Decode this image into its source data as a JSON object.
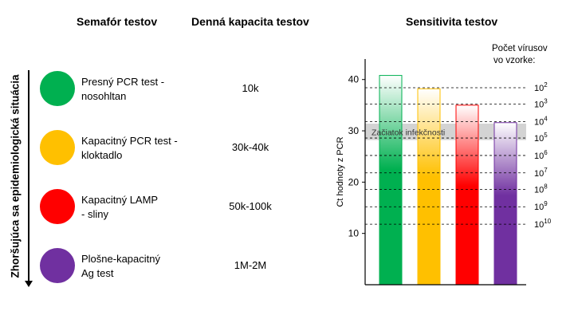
{
  "headers": {
    "semafor": "Semafór testov",
    "kapacita": "Denná kapacita testov",
    "sensitivita": "Sensitivita testov"
  },
  "side_label": "Zhoršujúca sa epidemiologická situácia",
  "tests": [
    {
      "name": "Presný PCR test -\nnosohltan",
      "capacity": "10k",
      "color": "#00B050"
    },
    {
      "name": "Kapacitný PCR test -\nkloktadlo",
      "capacity": "30k-40k",
      "color": "#FFC000"
    },
    {
      "name": "Kapacitný LAMP\n- sliny",
      "capacity": "50k-100k",
      "color": "#FF0000"
    },
    {
      "name": "Plošne-kapacitný\nAg test",
      "capacity": "1M-2M",
      "color": "#7030A0"
    }
  ],
  "chart_data": {
    "type": "bar",
    "title": "Sensitivita testov",
    "ylabel": "Ct hodnoty z PCR",
    "ylim": [
      0,
      44
    ],
    "yticks": [
      10,
      20,
      30,
      40
    ],
    "values": [
      40.8,
      38.2,
      35.0,
      31.6
    ],
    "colors": [
      "#00B050",
      "#FFC000",
      "#FF0000",
      "#7030A0"
    ],
    "band": {
      "label": "Začiatok infekčnosti",
      "from": 28.2,
      "to": 31.4
    },
    "right_axis": {
      "title": "Počet vírusov vo vzorke:",
      "levels": [
        {
          "exp": "2",
          "ct": 38.4
        },
        {
          "exp": "3",
          "ct": 35.2
        },
        {
          "exp": "4",
          "ct": 31.8
        },
        {
          "exp": "5",
          "ct": 28.6
        },
        {
          "exp": "6",
          "ct": 25.2
        },
        {
          "exp": "7",
          "ct": 21.8
        },
        {
          "exp": "8",
          "ct": 18.6
        },
        {
          "exp": "9",
          "ct": 15.2
        },
        {
          "exp": "10",
          "ct": 11.8
        }
      ]
    }
  }
}
